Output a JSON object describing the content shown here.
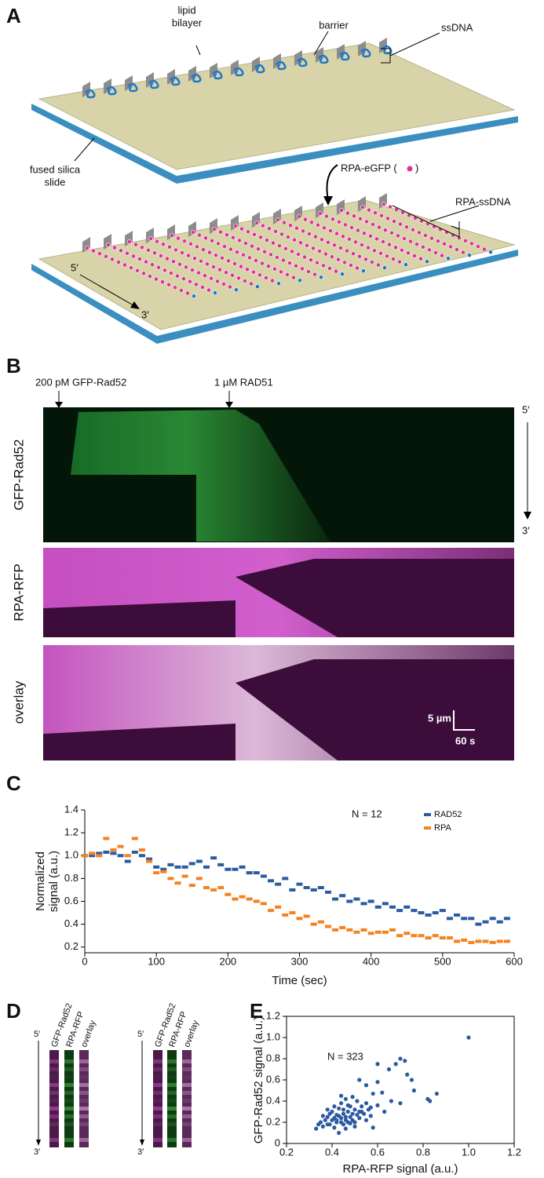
{
  "panels": {
    "a": {
      "letter": "A",
      "lipid_bilayer": [
        "lipid",
        "bilayer"
      ],
      "barrier": "barrier",
      "ssdna": "ssDNA",
      "fused_silica": [
        "fused silica",
        "slide"
      ],
      "rpa_egfp": "RPA-eGFP (",
      "rpa_egfp_close": ")",
      "rpa_ssdna": "RPA-ssDNA",
      "five": "5′",
      "three": "3′"
    },
    "b": {
      "letter": "B",
      "rad52_add": "200 pM GFP-Rad52",
      "rad51_add": "1 µM RAD51",
      "five": "5′",
      "three": "3′",
      "gfp": "GFP-Rad52",
      "rpa": "RPA-RFP",
      "overlay": "overlay",
      "scale_um": "5 µm",
      "scale_s": "60 s"
    },
    "c": {
      "letter": "C"
    },
    "d": {
      "letter": "D",
      "cols": [
        "GFP-Rad52",
        "RPA-RFP",
        "overlay"
      ],
      "five": "5′",
      "three": "3′"
    },
    "e": {
      "letter": "E"
    }
  },
  "chart_data": [
    {
      "type": "scatter",
      "x_label": "Time (sec)",
      "y_label": [
        "Normalized",
        "signal (a.u.)"
      ],
      "annotation": "N = 12",
      "x": [
        0,
        10,
        20,
        30,
        40,
        50,
        60,
        70,
        80,
        90,
        100,
        110,
        120,
        130,
        140,
        150,
        160,
        170,
        180,
        190,
        200,
        210,
        220,
        230,
        240,
        250,
        260,
        270,
        280,
        290,
        300,
        310,
        320,
        330,
        340,
        350,
        360,
        370,
        380,
        390,
        400,
        410,
        420,
        430,
        440,
        450,
        460,
        470,
        480,
        490,
        500,
        510,
        520,
        530,
        540,
        550,
        560,
        570,
        580,
        590
      ],
      "series": [
        {
          "name": "RAD52",
          "color": "#2c5aa0",
          "values": [
            1.0,
            1.0,
            1.02,
            1.03,
            1.02,
            1.0,
            0.95,
            1.03,
            1.0,
            0.97,
            0.9,
            0.88,
            0.92,
            0.9,
            0.9,
            0.93,
            0.95,
            0.9,
            0.98,
            0.92,
            0.88,
            0.88,
            0.9,
            0.85,
            0.85,
            0.82,
            0.78,
            0.75,
            0.8,
            0.7,
            0.75,
            0.72,
            0.7,
            0.72,
            0.68,
            0.62,
            0.65,
            0.6,
            0.62,
            0.58,
            0.6,
            0.55,
            0.58,
            0.55,
            0.52,
            0.55,
            0.52,
            0.5,
            0.48,
            0.5,
            0.52,
            0.45,
            0.48,
            0.45,
            0.45,
            0.4,
            0.42,
            0.45,
            0.42,
            0.45
          ]
        },
        {
          "name": "RPA",
          "color": "#f5821f",
          "values": [
            1.0,
            1.02,
            1.0,
            1.15,
            1.05,
            1.08,
            1.0,
            1.15,
            1.05,
            0.95,
            0.85,
            0.86,
            0.8,
            0.76,
            0.82,
            0.74,
            0.8,
            0.72,
            0.7,
            0.72,
            0.66,
            0.62,
            0.64,
            0.62,
            0.6,
            0.58,
            0.52,
            0.55,
            0.48,
            0.5,
            0.45,
            0.47,
            0.4,
            0.42,
            0.38,
            0.35,
            0.37,
            0.35,
            0.33,
            0.35,
            0.32,
            0.33,
            0.33,
            0.35,
            0.3,
            0.32,
            0.3,
            0.3,
            0.28,
            0.3,
            0.28,
            0.28,
            0.25,
            0.26,
            0.24,
            0.25,
            0.25,
            0.24,
            0.25,
            0.25
          ]
        }
      ],
      "xlim": [
        0,
        600
      ],
      "xticks": [
        0,
        100,
        200,
        300,
        400,
        500,
        600
      ],
      "ylim": [
        0.15,
        1.4
      ],
      "yticks": [
        0.2,
        0.4,
        0.6,
        0.8,
        {
          "value": 1,
          "label": "1.0"
        },
        1.2,
        1.4
      ],
      "legend": "upper right"
    },
    {
      "type": "scatter",
      "x_label": "RPA-RFP signal (a.u.)",
      "y_label": [
        "GFP-Rad52 signal (a.u.)"
      ],
      "annotation": "N = 323",
      "color": "#2c5aa0",
      "x": [
        1.0,
        0.7,
        0.72,
        0.68,
        0.65,
        0.6,
        0.73,
        0.75,
        0.76,
        0.82,
        0.83,
        0.86,
        0.62,
        0.55,
        0.52,
        0.6,
        0.58,
        0.66,
        0.7,
        0.63,
        0.58,
        0.33,
        0.35,
        0.36,
        0.38,
        0.38,
        0.4,
        0.4,
        0.41,
        0.42,
        0.42,
        0.43,
        0.44,
        0.44,
        0.45,
        0.45,
        0.46,
        0.46,
        0.47,
        0.47,
        0.48,
        0.48,
        0.49,
        0.5,
        0.5,
        0.51,
        0.52,
        0.52,
        0.53,
        0.54,
        0.55,
        0.56,
        0.57,
        0.34,
        0.37,
        0.39,
        0.41,
        0.43,
        0.45,
        0.47,
        0.49,
        0.51,
        0.53,
        0.36,
        0.39,
        0.42,
        0.44,
        0.46,
        0.48,
        0.5,
        0.44,
        0.46,
        0.41,
        0.38,
        0.55,
        0.57,
        0.6,
        0.49,
        0.43
      ],
      "values": [
        1.0,
        0.8,
        0.78,
        0.75,
        0.7,
        0.58,
        0.65,
        0.6,
        0.5,
        0.42,
        0.4,
        0.47,
        0.48,
        0.55,
        0.6,
        0.75,
        0.47,
        0.4,
        0.38,
        0.3,
        0.15,
        0.14,
        0.2,
        0.16,
        0.25,
        0.18,
        0.22,
        0.3,
        0.15,
        0.27,
        0.2,
        0.33,
        0.24,
        0.38,
        0.18,
        0.28,
        0.22,
        0.42,
        0.3,
        0.2,
        0.35,
        0.25,
        0.28,
        0.32,
        0.2,
        0.4,
        0.3,
        0.24,
        0.35,
        0.28,
        0.38,
        0.32,
        0.26,
        0.18,
        0.22,
        0.28,
        0.24,
        0.26,
        0.32,
        0.36,
        0.22,
        0.27,
        0.3,
        0.26,
        0.18,
        0.22,
        0.2,
        0.25,
        0.19,
        0.16,
        0.45,
        0.14,
        0.35,
        0.32,
        0.22,
        0.34,
        0.36,
        0.44,
        0.1
      ],
      "xlim": [
        0.2,
        1.2
      ],
      "xticks": [
        0.2,
        0.4,
        0.6,
        0.8,
        {
          "value": 1,
          "label": "1.0"
        },
        1.2
      ],
      "ylim": [
        0,
        1.2
      ],
      "yticks": [
        0,
        0.2,
        0.4,
        0.6,
        0.8,
        {
          "value": 1,
          "label": "1.0"
        },
        1.2
      ]
    }
  ]
}
